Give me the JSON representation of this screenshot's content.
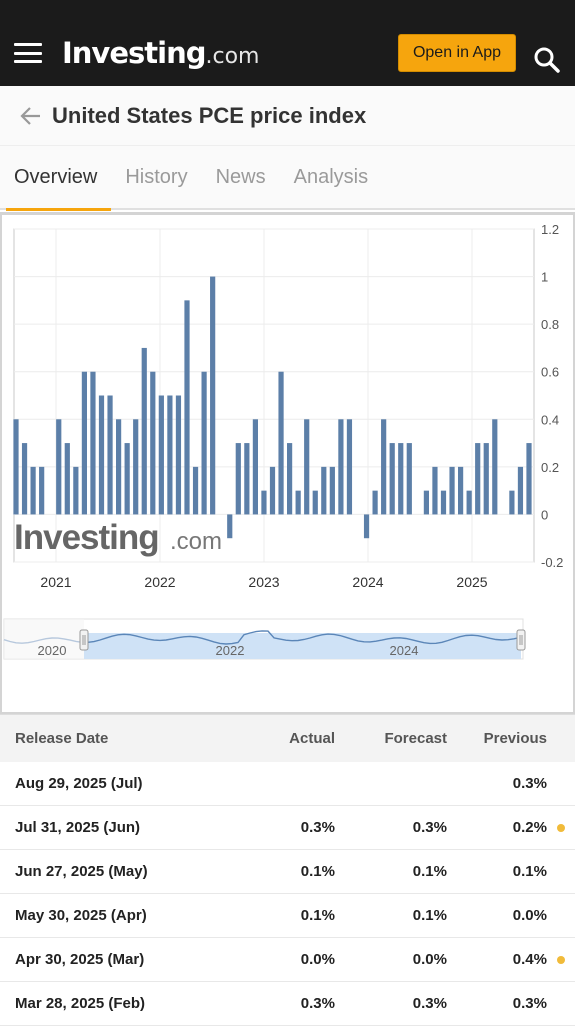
{
  "app": {
    "brand": "Investing",
    "brand_tld": ".com",
    "open_app_label": "Open in App"
  },
  "page": {
    "title": "United States PCE price index"
  },
  "tabs": [
    {
      "label": "Overview",
      "active": true
    },
    {
      "label": "History",
      "active": false
    },
    {
      "label": "News",
      "active": false
    },
    {
      "label": "Analysis",
      "active": false
    }
  ],
  "icons": [
    "hamburger-menu-icon",
    "search-icon",
    "back-arrow-icon",
    "chevron-dot-icon"
  ],
  "colors": {
    "accent": "#f6a50d",
    "bar": "#5c7fa8",
    "navigator_fill": "#cfe2f6",
    "navigator_line": "#5b86b8",
    "revision_dot": "#f1bb3a"
  },
  "chart_data": {
    "type": "bar",
    "watermark": "Investing.com",
    "x_tick_labels": [
      "2021",
      "2022",
      "2023",
      "2024",
      "2025"
    ],
    "y_tick_labels": [
      "1.2",
      "1",
      "0.8",
      "0.6",
      "0.4",
      "0.2",
      "0",
      "-0.2"
    ],
    "ylim": [
      -0.2,
      1.2
    ],
    "grid": true,
    "axis_position": "right",
    "values": [
      0.4,
      0.3,
      0.2,
      0.2,
      null,
      0.4,
      0.3,
      0.2,
      0.6,
      0.6,
      0.5,
      0.5,
      0.4,
      0.3,
      0.4,
      0.7,
      0.6,
      0.5,
      0.5,
      0.5,
      0.9,
      0.2,
      0.6,
      1.0,
      null,
      -0.1,
      0.3,
      0.3,
      0.4,
      0.1,
      0.2,
      0.6,
      0.3,
      0.1,
      0.4,
      0.1,
      0.2,
      0.2,
      0.4,
      0.4,
      null,
      -0.1,
      0.1,
      0.4,
      0.3,
      0.3,
      0.3,
      null,
      0.1,
      0.2,
      0.1,
      0.2,
      0.2,
      0.1,
      0.3,
      0.3,
      0.4,
      null,
      0.1,
      0.2,
      0.3
    ],
    "navigator_labels": [
      "2020",
      "2022",
      "2024"
    ]
  },
  "table": {
    "headers": {
      "date": "Release Date",
      "actual": "Actual",
      "forecast": "Forecast",
      "previous": "Previous"
    },
    "rows": [
      {
        "date": "Aug 29, 2025 (Jul)",
        "actual": "",
        "forecast": "",
        "previous": "0.3%",
        "revised": false
      },
      {
        "date": "Jul 31, 2025 (Jun)",
        "actual": "0.3%",
        "forecast": "0.3%",
        "previous": "0.2%",
        "revised": true
      },
      {
        "date": "Jun 27, 2025 (May)",
        "actual": "0.1%",
        "forecast": "0.1%",
        "previous": "0.1%",
        "revised": false
      },
      {
        "date": "May 30, 2025 (Apr)",
        "actual": "0.1%",
        "forecast": "0.1%",
        "previous": "0.0%",
        "revised": false
      },
      {
        "date": "Apr 30, 2025 (Mar)",
        "actual": "0.0%",
        "forecast": "0.0%",
        "previous": "0.4%",
        "revised": true
      },
      {
        "date": "Mar 28, 2025 (Feb)",
        "actual": "0.3%",
        "forecast": "0.3%",
        "previous": "0.3%",
        "revised": false
      }
    ]
  }
}
